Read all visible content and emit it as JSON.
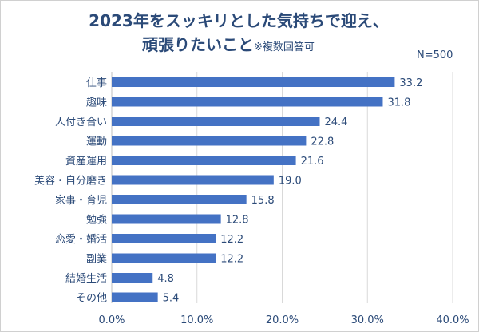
{
  "title": {
    "line1": "2023年をスッキリとした気持ちで迎え、",
    "line2": "頑張りたいこと",
    "note": "※複数回答可"
  },
  "sample_size": "N=500",
  "colors": {
    "bar": "#4472c4",
    "text": "#2b4a78",
    "grid": "#d9d9d9"
  },
  "chart_data": {
    "type": "bar",
    "orientation": "horizontal",
    "categories": [
      "仕事",
      "趣味",
      "人付き合い",
      "運動",
      "資産運用",
      "美容・自分磨き",
      "家事・育児",
      "勉強",
      "恋愛・婚活",
      "副業",
      "結婚生活",
      "その他"
    ],
    "values": [
      33.2,
      31.8,
      24.4,
      22.8,
      21.6,
      19.0,
      15.8,
      12.8,
      12.2,
      12.2,
      4.8,
      5.4
    ],
    "value_labels": [
      "33.2",
      "31.8",
      "24.4",
      "22.8",
      "21.6",
      "19.0",
      "15.8",
      "12.8",
      "12.2",
      "12.2",
      "4.8",
      "5.4"
    ],
    "xlim": [
      0,
      40
    ],
    "xticks": [
      "0.0%",
      "10.0%",
      "20.0%",
      "30.0%",
      "40.0%"
    ],
    "grid": true
  }
}
